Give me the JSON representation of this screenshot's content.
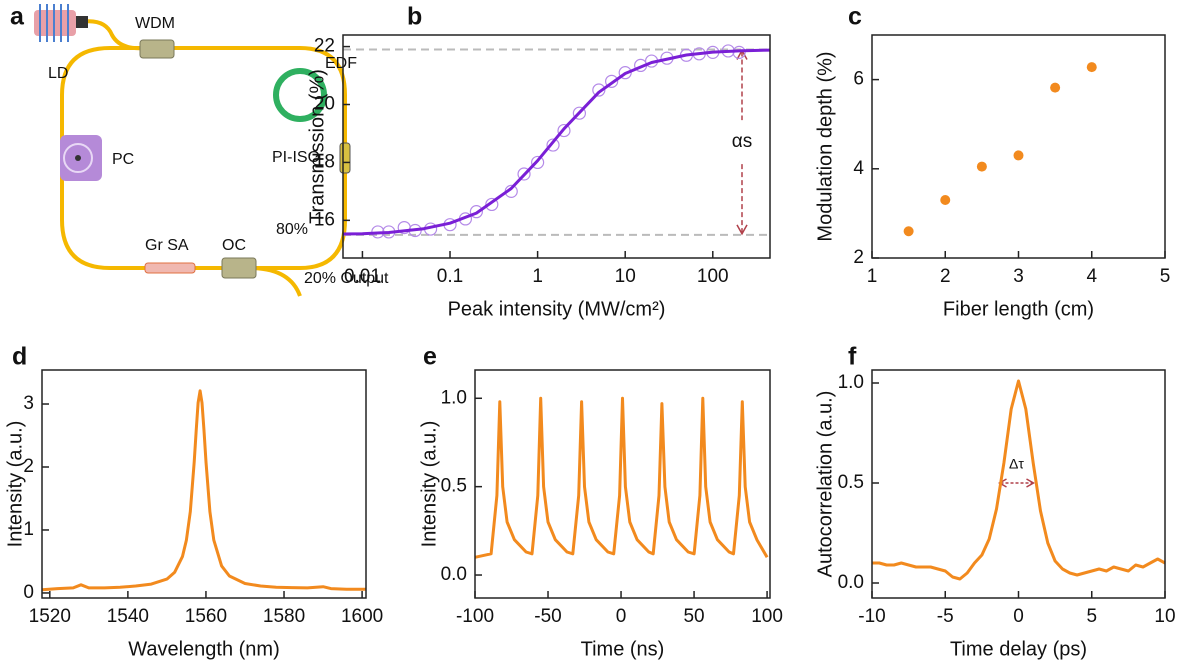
{
  "diagram": {
    "panel_label": "a",
    "labels": {
      "ld": "LD",
      "wdm": "WDM",
      "edf": "EDF",
      "pc": "PC",
      "pi_iso": "PI-ISO",
      "ratio": "80%",
      "gr_sa": "Gr SA",
      "oc": "OC",
      "output": "20% Output"
    }
  },
  "chart_data": [
    {
      "type": "line",
      "panel_label": "b",
      "x_label": "Peak intensity (MW/cm²)",
      "y_label": "Transmission (%)",
      "xscale": "log",
      "xlim": [
        0.006,
        450
      ],
      "ylim": [
        14.7,
        22.4
      ],
      "xticks": [
        0.01,
        0.1,
        1,
        10,
        100
      ],
      "yticks": [
        16,
        18,
        20,
        22
      ],
      "reference_lines": [
        21.9,
        15.5
      ],
      "annotation": "αs",
      "series": [
        {
          "color": "#b48ae8",
          "marker": "open-circle",
          "x": [
            0.015,
            0.02,
            0.03,
            0.04,
            0.06,
            0.1,
            0.15,
            0.2,
            0.3,
            0.5,
            0.7,
            1,
            1.5,
            2,
            3,
            5,
            7,
            10,
            15,
            20,
            30,
            50,
            70,
            100,
            150,
            200
          ],
          "values": [
            15.6,
            15.6,
            15.75,
            15.65,
            15.7,
            15.85,
            16.05,
            16.3,
            16.55,
            17.0,
            17.6,
            18.0,
            18.6,
            19.1,
            19.7,
            20.5,
            20.8,
            21.1,
            21.35,
            21.5,
            21.6,
            21.7,
            21.75,
            21.8,
            21.85,
            21.8
          ]
        },
        {
          "color": "#7a1fd6",
          "x": [
            0.006,
            0.01,
            0.02,
            0.05,
            0.1,
            0.2,
            0.5,
            1,
            2,
            5,
            10,
            20,
            50,
            100,
            200,
            450
          ],
          "values": [
            15.53,
            15.54,
            15.58,
            15.71,
            15.9,
            16.25,
            17.1,
            18.06,
            19.16,
            20.42,
            21.07,
            21.45,
            21.71,
            21.81,
            21.85,
            21.88
          ]
        }
      ]
    },
    {
      "type": "scatter",
      "panel_label": "c",
      "x_label": "Fiber length (cm)",
      "y_label": "Modulation depth (%)",
      "xlim": [
        1,
        5
      ],
      "ylim": [
        2,
        7
      ],
      "xticks": [
        1,
        2,
        3,
        4,
        5
      ],
      "yticks": [
        2,
        4,
        6
      ],
      "series": [
        {
          "color": "#f28a1e",
          "x": [
            1.5,
            2,
            2.5,
            3,
            3.5,
            4
          ],
          "values": [
            2.6,
            3.3,
            4.05,
            4.3,
            5.82,
            6.28
          ]
        }
      ]
    },
    {
      "type": "line",
      "panel_label": "d",
      "x_label": "Wavelength (nm)",
      "y_label": "Intensity (a.u.)",
      "xlim": [
        1518,
        1601
      ],
      "ylim": [
        -0.08,
        3.54
      ],
      "xticks": [
        1520,
        1540,
        1560,
        1580,
        1600
      ],
      "yticks": [
        0,
        1,
        2,
        3
      ],
      "series": [
        {
          "color": "#f28a1e",
          "x": [
            1518,
            1522,
            1526,
            1528,
            1530,
            1534,
            1538,
            1542,
            1546,
            1550,
            1552,
            1554,
            1555,
            1556,
            1557,
            1557.5,
            1558,
            1558.5,
            1559,
            1559.5,
            1560,
            1561,
            1562,
            1564,
            1566,
            1570,
            1574,
            1578,
            1582,
            1586,
            1590,
            1592,
            1596,
            1601
          ],
          "values": [
            0.05,
            0.07,
            0.08,
            0.13,
            0.08,
            0.08,
            0.09,
            0.11,
            0.14,
            0.22,
            0.33,
            0.58,
            0.84,
            1.29,
            2.08,
            2.58,
            3.02,
            3.21,
            3.02,
            2.58,
            2.08,
            1.29,
            0.84,
            0.43,
            0.27,
            0.15,
            0.11,
            0.09,
            0.085,
            0.08,
            0.1,
            0.07,
            0.06,
            0.06
          ]
        }
      ]
    },
    {
      "type": "line",
      "panel_label": "e",
      "x_label": "Time (ns)",
      "y_label": "Intensity (a.u.)",
      "xlim": [
        -100,
        102
      ],
      "ylim": [
        -0.13,
        1.16
      ],
      "xticks": [
        -100,
        -50,
        0,
        50,
        100
      ],
      "yticks": [
        {
          "value": 0,
          "label": "0.0"
        },
        0.5,
        {
          "value": 1,
          "label": "1.0"
        }
      ],
      "series": [
        {
          "color": "#f28a1e",
          "x": [
            -100,
            -89,
            -85,
            -83,
            -81,
            -78,
            -73,
            -65,
            -61,
            -57,
            -55,
            -53,
            -50,
            -45,
            -37,
            -33,
            -29,
            -27,
            -25,
            -22,
            -17,
            -9,
            -5,
            -1,
            1,
            3,
            6,
            11,
            19,
            22,
            26,
            28,
            30,
            33,
            38,
            46,
            50,
            54,
            56,
            58,
            61,
            66,
            74,
            77,
            81,
            83,
            85,
            88,
            93,
            100
          ],
          "values": [
            0.1,
            0.12,
            0.45,
            0.98,
            0.5,
            0.3,
            0.2,
            0.13,
            0.12,
            0.45,
            1.0,
            0.5,
            0.3,
            0.2,
            0.13,
            0.12,
            0.45,
            0.98,
            0.5,
            0.3,
            0.2,
            0.13,
            0.12,
            0.45,
            1.0,
            0.5,
            0.3,
            0.2,
            0.13,
            0.12,
            0.45,
            0.97,
            0.5,
            0.3,
            0.2,
            0.13,
            0.12,
            0.45,
            1.0,
            0.5,
            0.3,
            0.2,
            0.13,
            0.12,
            0.45,
            0.98,
            0.5,
            0.3,
            0.2,
            0.1
          ]
        }
      ]
    },
    {
      "type": "line",
      "panel_label": "f",
      "x_label": "Time delay (ps)",
      "y_label": "Autocorrelation (a.u.)",
      "xlim": [
        -10,
        10
      ],
      "ylim": [
        -0.075,
        1.065
      ],
      "xticks": [
        -10,
        -5,
        0,
        5,
        10
      ],
      "yticks": [
        {
          "value": 0,
          "label": "0.0"
        },
        0.5,
        {
          "value": 1,
          "label": "1.0"
        }
      ],
      "annotation": "Δτ",
      "series": [
        {
          "color": "#f28a1e",
          "x": [
            -10,
            -9.5,
            -9,
            -8.5,
            -8,
            -7.5,
            -7,
            -6.5,
            -6,
            -5.5,
            -5,
            -4.5,
            -4,
            -3.5,
            -3,
            -2.5,
            -2,
            -1.5,
            -1,
            -0.5,
            0,
            0.5,
            1,
            1.5,
            2,
            2.5,
            3,
            3.5,
            4,
            4.5,
            5,
            5.5,
            6,
            6.5,
            7,
            7.5,
            8,
            8.5,
            9,
            9.5,
            10
          ],
          "values": [
            0.1,
            0.1,
            0.09,
            0.09,
            0.1,
            0.09,
            0.08,
            0.08,
            0.08,
            0.07,
            0.06,
            0.03,
            0.02,
            0.05,
            0.1,
            0.14,
            0.22,
            0.37,
            0.6,
            0.87,
            1.01,
            0.87,
            0.6,
            0.36,
            0.2,
            0.11,
            0.07,
            0.05,
            0.04,
            0.05,
            0.06,
            0.07,
            0.06,
            0.08,
            0.07,
            0.06,
            0.09,
            0.08,
            0.1,
            0.12,
            0.1
          ]
        }
      ]
    }
  ]
}
